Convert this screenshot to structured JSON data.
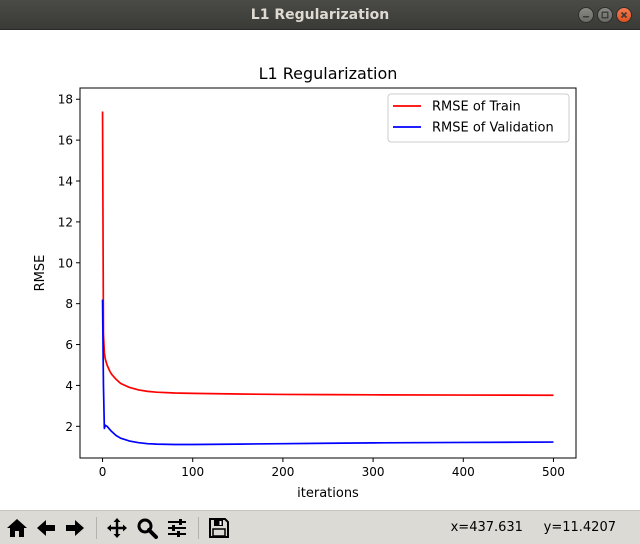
{
  "window": {
    "title": "L1 Regularization"
  },
  "toolbar": {
    "buttons": [
      "home-icon",
      "back-icon",
      "forward-icon",
      "pan-icon",
      "zoom-icon",
      "configure-subplots-icon",
      "save-icon"
    ],
    "coord_x": "x=437.631",
    "coord_y": "y=11.4207"
  },
  "colors": {
    "train": "#ff0000",
    "validation": "#0000ff"
  },
  "chart_data": {
    "type": "line",
    "title": "L1 Regularization",
    "xlabel": "iterations",
    "ylabel": "RMSE",
    "xlim": [
      -25,
      525
    ],
    "ylim": [
      0.45,
      18.55
    ],
    "xticks": [
      0,
      100,
      200,
      300,
      400,
      500
    ],
    "yticks": [
      2,
      4,
      6,
      8,
      10,
      12,
      14,
      16,
      18
    ],
    "grid": false,
    "legend_position": "top-right",
    "series": [
      {
        "name": "RMSE of Train",
        "color": "#ff0000",
        "x": [
          0,
          1,
          2,
          3,
          5,
          8,
          10,
          15,
          20,
          30,
          40,
          50,
          60,
          80,
          100,
          150,
          200,
          250,
          300,
          400,
          500
        ],
        "y": [
          17.4,
          6.5,
          5.6,
          5.3,
          5.0,
          4.7,
          4.55,
          4.3,
          4.1,
          3.9,
          3.78,
          3.71,
          3.67,
          3.63,
          3.61,
          3.58,
          3.56,
          3.55,
          3.54,
          3.53,
          3.52
        ]
      },
      {
        "name": "RMSE of Validation",
        "color": "#0000ff",
        "x": [
          0,
          1,
          2,
          3,
          5,
          8,
          10,
          15,
          20,
          30,
          40,
          50,
          60,
          80,
          100,
          150,
          200,
          250,
          300,
          400,
          500
        ],
        "y": [
          8.2,
          4.0,
          1.9,
          2.05,
          2.0,
          1.85,
          1.75,
          1.55,
          1.42,
          1.28,
          1.2,
          1.15,
          1.13,
          1.11,
          1.11,
          1.13,
          1.15,
          1.17,
          1.19,
          1.21,
          1.23
        ]
      }
    ]
  }
}
